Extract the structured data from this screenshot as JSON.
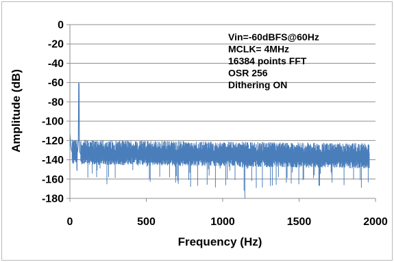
{
  "chart_data": {
    "type": "line",
    "title": "",
    "xlabel": "Frequency (Hz)",
    "ylabel": "Amplitude (dB)",
    "xlim": [
      0,
      2000
    ],
    "ylim": [
      -180,
      0
    ],
    "xticks": [
      0,
      500,
      1000,
      1500,
      2000
    ],
    "yticks": [
      0,
      -20,
      -40,
      -60,
      -80,
      -100,
      -120,
      -140,
      -160,
      -180
    ],
    "xtick_labels": [
      "0",
      "500",
      "1000",
      "1500",
      "2000"
    ],
    "ytick_labels": [
      "0",
      "-20",
      "-40",
      "-60",
      "-80",
      "-100",
      "-120",
      "-140",
      "-160",
      "-180"
    ],
    "grid": "horizontal",
    "series": [
      {
        "color": "#4a7ebb",
        "x": [
          0,
          3,
          6,
          10,
          15,
          20,
          30,
          40,
          50,
          55,
          58,
          60,
          62,
          65,
          70,
          100,
          150,
          200,
          250,
          300,
          400,
          500,
          600,
          700,
          750,
          800,
          900,
          1000,
          1100,
          1130,
          1140,
          1200,
          1300,
          1350,
          1400,
          1500,
          1600,
          1700,
          1800,
          1900,
          1960
        ],
        "y": [
          -113,
          -118,
          -125,
          -130,
          -132,
          -135,
          -134,
          -133,
          -132,
          -120,
          -60,
          -62,
          -120,
          -132,
          -134,
          -134,
          -135,
          -134,
          -135,
          -134,
          -135,
          -135,
          -135,
          -135,
          -136,
          -136,
          -136,
          -136,
          -136,
          -137,
          -137,
          -136,
          -137,
          -137,
          -137,
          -137,
          -137,
          -137,
          -137,
          -137,
          -137
        ]
      }
    ],
    "annotation": [
      "Vin=-60dBFS@60Hz",
      "MCLK= 4MHz",
      "16384 points FFT",
      "OSR 256",
      "Dithering ON"
    ]
  }
}
